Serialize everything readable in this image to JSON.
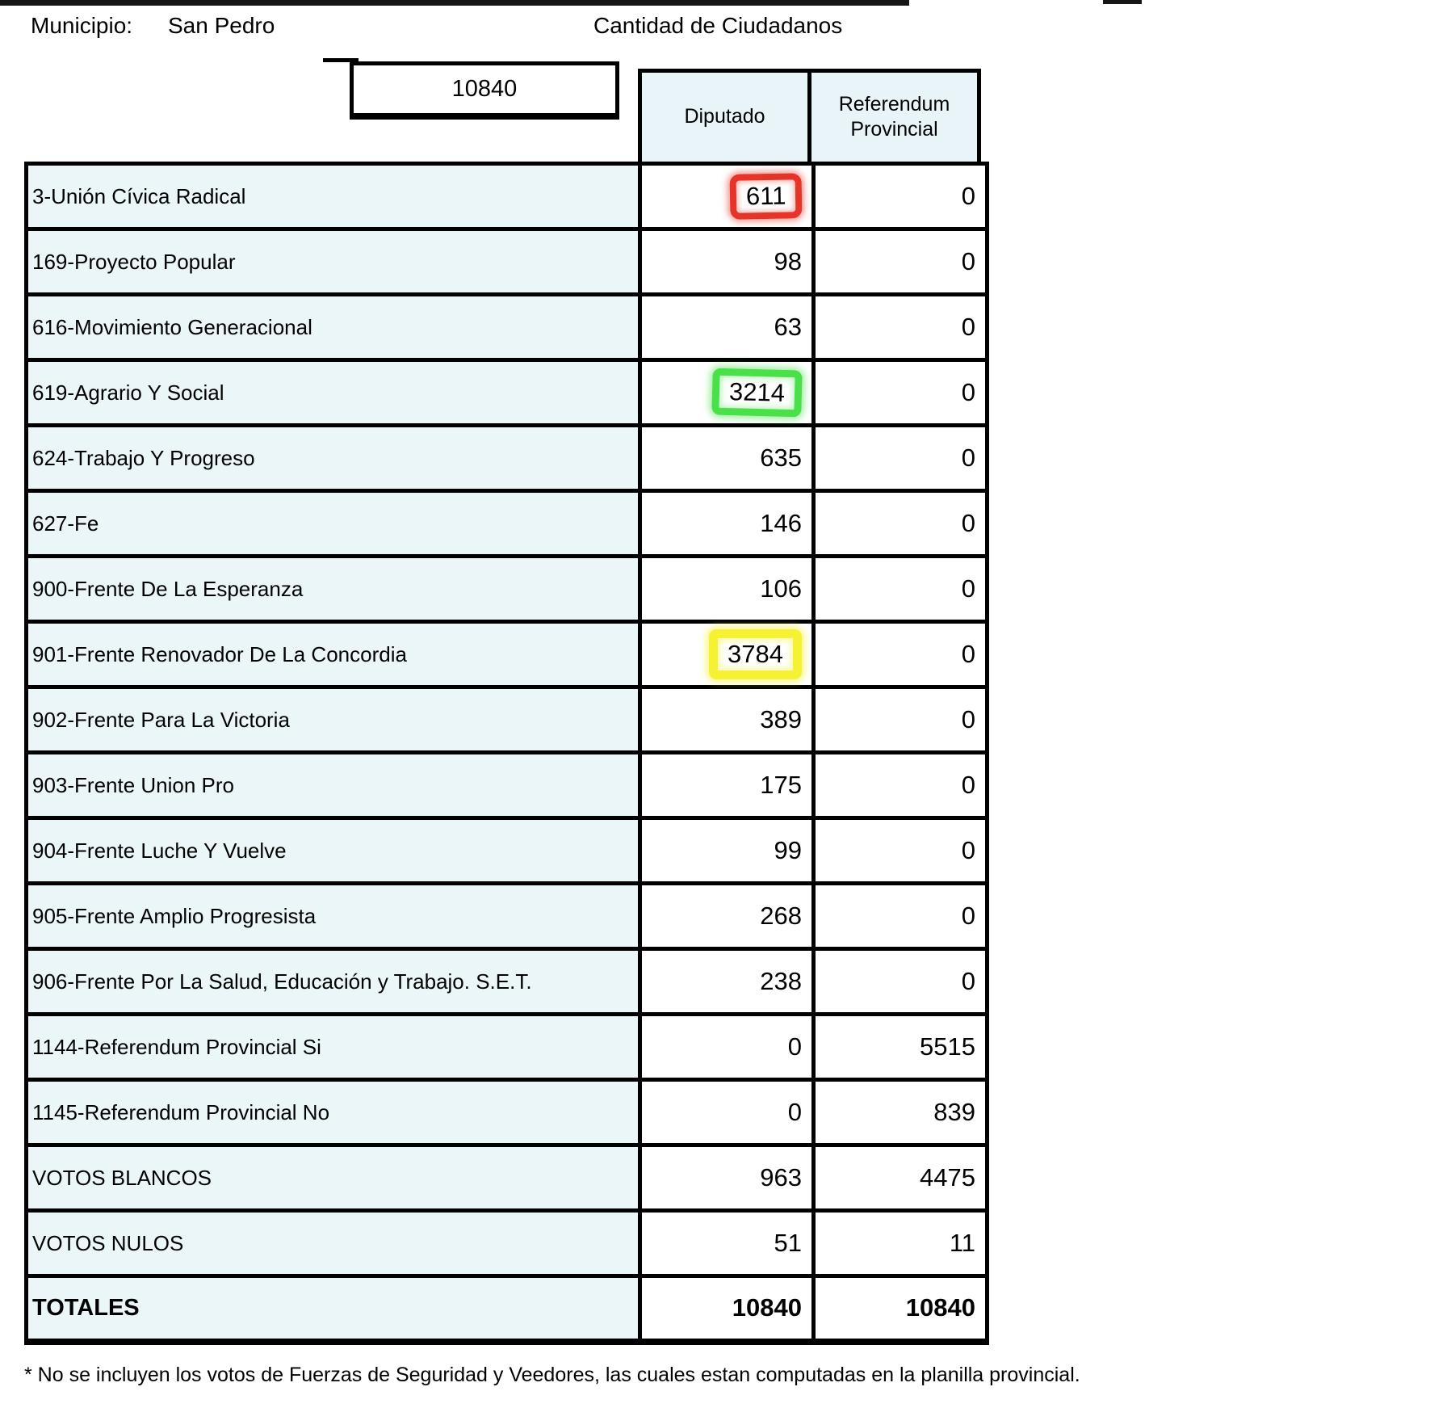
{
  "page": {
    "municipio_label": "Municipio:",
    "municipio_value": "San Pedro",
    "ciudadanos_label": "Cantidad de Ciudadanos",
    "ciudadanos_total": "10840",
    "footnote": "* No se incluyen los votos de Fuerzas de Seguridad y Veedores, las cuales estan computadas en la planilla provincial."
  },
  "table": {
    "col1_header": "Diputado",
    "col2_header": "Referendum Provincial",
    "rows": [
      {
        "label": "3-Unión Cívica Radical",
        "diputado": "611",
        "referendum": "0",
        "highlight": "red"
      },
      {
        "label": "169-Proyecto Popular",
        "diputado": "98",
        "referendum": "0",
        "highlight": null
      },
      {
        "label": "616-Movimiento Generacional",
        "diputado": "63",
        "referendum": "0",
        "highlight": null
      },
      {
        "label": "619-Agrario Y Social",
        "diputado": "3214",
        "referendum": "0",
        "highlight": "green"
      },
      {
        "label": "624-Trabajo Y Progreso",
        "diputado": "635",
        "referendum": "0",
        "highlight": null
      },
      {
        "label": "627-Fe",
        "diputado": "146",
        "referendum": "0",
        "highlight": null
      },
      {
        "label": "900-Frente De La Esperanza",
        "diputado": "106",
        "referendum": "0",
        "highlight": null
      },
      {
        "label": "901-Frente Renovador De La Concordia",
        "diputado": "3784",
        "referendum": "0",
        "highlight": "yellow"
      },
      {
        "label": "902-Frente Para La Victoria",
        "diputado": "389",
        "referendum": "0",
        "highlight": null
      },
      {
        "label": "903-Frente Union Pro",
        "diputado": "175",
        "referendum": "0",
        "highlight": null
      },
      {
        "label": "904-Frente Luche Y Vuelve",
        "diputado": "99",
        "referendum": "0",
        "highlight": null
      },
      {
        "label": "905-Frente Amplio Progresista",
        "diputado": "268",
        "referendum": "0",
        "highlight": null
      },
      {
        "label": "906-Frente Por La Salud, Educación y Trabajo. S.E.T.",
        "diputado": "238",
        "referendum": "0",
        "highlight": null
      },
      {
        "label": "1144-Referendum Provincial Si",
        "diputado": "0",
        "referendum": "5515",
        "highlight": null
      },
      {
        "label": "1145-Referendum Provincial No",
        "diputado": "0",
        "referendum": "839",
        "highlight": null
      },
      {
        "label": "VOTOS BLANCOS",
        "diputado": "963",
        "referendum": "4475",
        "highlight": null
      },
      {
        "label": "VOTOS NULOS",
        "diputado": "51",
        "referendum": "11",
        "highlight": null
      },
      {
        "label": "TOTALES",
        "diputado": "10840",
        "referendum": "10840",
        "highlight": null,
        "total": true
      }
    ]
  },
  "annotation_colors": {
    "red": "#e73428",
    "green": "#4ae04a",
    "yellow": "#f6f233"
  }
}
